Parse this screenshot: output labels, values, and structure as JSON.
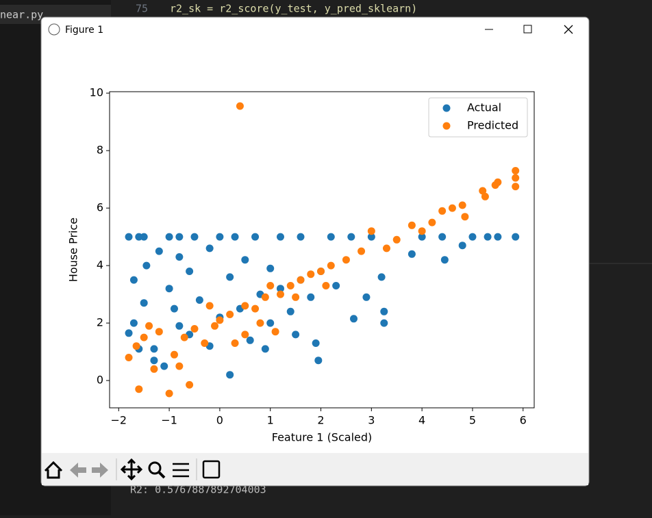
{
  "editor": {
    "tab": "near.py",
    "line_number": "75",
    "code": "r2_sk = r2_score(y_test, y_pred_sklearn)",
    "output": "R2: 0.5767887892704003"
  },
  "window": {
    "title": "Figure 1"
  },
  "chart_data": {
    "type": "scatter",
    "x_label": "Feature 1 (Scaled)",
    "y_label": "House Price",
    "xlim": [
      -2.18,
      6.22
    ],
    "ylim": [
      -0.95,
      10.05
    ],
    "xticks": [
      {
        "value": -2,
        "label": "−2"
      },
      {
        "value": -1,
        "label": "−1"
      },
      0,
      1,
      2,
      3,
      4,
      5,
      6
    ],
    "yticks": [
      0,
      2,
      4,
      6,
      8,
      10
    ],
    "legend": "upper-right",
    "series": [
      {
        "name": "Actual",
        "color": "#1f77b4",
        "x": [
          -1.8,
          -1.6,
          -1.5,
          -1,
          -0.8,
          -0.5,
          0,
          0.3,
          0.7,
          1.2,
          1.6,
          2.2,
          2.6,
          3,
          4,
          4.4,
          5,
          5.3,
          5.5,
          5.85,
          4.45,
          4.8,
          3.8,
          3.2,
          2.9,
          3.25,
          3.25,
          2.65,
          1.95,
          -1.7,
          -1.45,
          -1.2,
          -1,
          -0.8,
          -0.6,
          -0.2,
          0.5,
          1,
          -1.8,
          -1.7,
          -1.5,
          -1.3,
          -1.1,
          -0.9,
          -0.6,
          -0.4,
          -0.2,
          0,
          0.2,
          0.4,
          0.6,
          0.8,
          1,
          1.2,
          1.4,
          1.6,
          1.8,
          2,
          2.3,
          -1.6,
          -1.3,
          -0.8,
          0.2,
          0.9,
          1.5,
          1.9
        ],
        "values": [
          5,
          5,
          5,
          5,
          5,
          5,
          5,
          5,
          5,
          5,
          5,
          5,
          5,
          5,
          5,
          5,
          5,
          5,
          5,
          5,
          4.2,
          4.7,
          4.4,
          3.6,
          2.9,
          2.4,
          2,
          2.15,
          0.7,
          3.5,
          4,
          4.5,
          3.2,
          4.3,
          3.8,
          4.6,
          4.2,
          3.9,
          1.65,
          2,
          2.7,
          1.1,
          0.5,
          2.5,
          1.6,
          2.8,
          1.2,
          2.2,
          0.2,
          2.5,
          1.4,
          3,
          2,
          3.2,
          2.4,
          3.5,
          2.9,
          3.8,
          3.3,
          1.1,
          0.7,
          1.9,
          3.6,
          1.1,
          1.6,
          1.3
        ]
      },
      {
        "name": "Predicted",
        "color": "#ff7f0e",
        "x": [
          -1.8,
          -1.6,
          -1.65,
          -1.5,
          -1.3,
          -1.2,
          -1,
          -0.9,
          -0.7,
          -0.6,
          -0.5,
          -0.3,
          -0.1,
          0,
          0.2,
          0.4,
          0.3,
          0.5,
          0.7,
          0.9,
          1,
          1.2,
          1.4,
          1.6,
          1.8,
          2,
          2.2,
          2.5,
          2.8,
          3,
          3.3,
          3.5,
          3.8,
          4,
          4.2,
          4.4,
          4.6,
          4.8,
          4.85,
          5.2,
          5.25,
          5.45,
          5.5,
          5.85,
          5.85,
          5.85,
          1.5,
          0.8,
          -0.2,
          -0.8,
          1.1,
          2.1,
          0.5,
          -1.4
        ],
        "values": [
          0.8,
          -0.3,
          1.2,
          1.5,
          0.4,
          1.7,
          -0.45,
          0.9,
          1.5,
          -0.15,
          1.8,
          1.3,
          1.9,
          2.1,
          2.3,
          9.55,
          1.3,
          2.6,
          2.5,
          2.9,
          3.3,
          3,
          3.3,
          3.5,
          3.7,
          3.8,
          4,
          4.2,
          4.5,
          5.2,
          4.6,
          4.9,
          5.4,
          5.2,
          5.5,
          5.9,
          6,
          6.1,
          5.7,
          6.6,
          6.4,
          6.8,
          6.9,
          7.3,
          7.05,
          6.75,
          2.9,
          2,
          2.6,
          0.5,
          1.7,
          3.3,
          1.6,
          1.9
        ]
      }
    ]
  }
}
